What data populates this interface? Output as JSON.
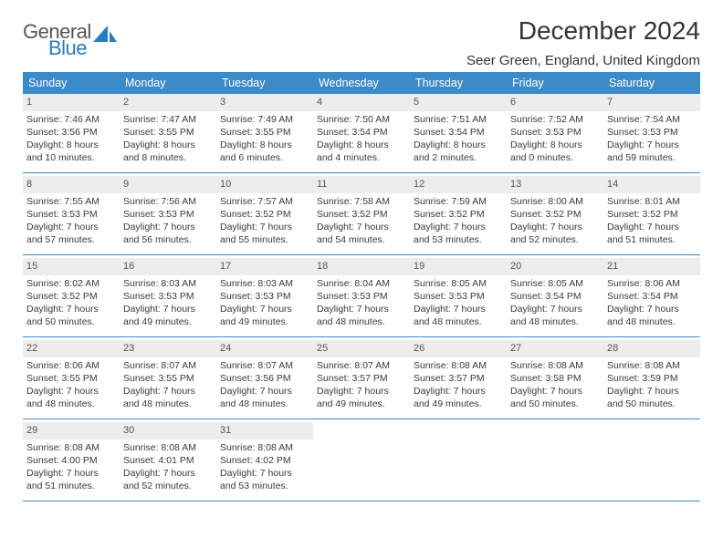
{
  "logo": {
    "general": "General",
    "blue": "Blue"
  },
  "title": "December 2024",
  "location": "Seer Green, England, United Kingdom",
  "colors": {
    "header_bg": "#3b8bc9",
    "header_text": "#ffffff",
    "row_border": "#3b8bc9",
    "daynum_bg": "#ededed",
    "text": "#3a3a3a"
  },
  "day_headers": [
    "Sunday",
    "Monday",
    "Tuesday",
    "Wednesday",
    "Thursday",
    "Friday",
    "Saturday"
  ],
  "weeks": [
    [
      {
        "n": "1",
        "sunrise": "7:46 AM",
        "sunset": "3:56 PM",
        "daylight": "8 hours and 10 minutes."
      },
      {
        "n": "2",
        "sunrise": "7:47 AM",
        "sunset": "3:55 PM",
        "daylight": "8 hours and 8 minutes."
      },
      {
        "n": "3",
        "sunrise": "7:49 AM",
        "sunset": "3:55 PM",
        "daylight": "8 hours and 6 minutes."
      },
      {
        "n": "4",
        "sunrise": "7:50 AM",
        "sunset": "3:54 PM",
        "daylight": "8 hours and 4 minutes."
      },
      {
        "n": "5",
        "sunrise": "7:51 AM",
        "sunset": "3:54 PM",
        "daylight": "8 hours and 2 minutes."
      },
      {
        "n": "6",
        "sunrise": "7:52 AM",
        "sunset": "3:53 PM",
        "daylight": "8 hours and 0 minutes."
      },
      {
        "n": "7",
        "sunrise": "7:54 AM",
        "sunset": "3:53 PM",
        "daylight": "7 hours and 59 minutes."
      }
    ],
    [
      {
        "n": "8",
        "sunrise": "7:55 AM",
        "sunset": "3:53 PM",
        "daylight": "7 hours and 57 minutes."
      },
      {
        "n": "9",
        "sunrise": "7:56 AM",
        "sunset": "3:53 PM",
        "daylight": "7 hours and 56 minutes."
      },
      {
        "n": "10",
        "sunrise": "7:57 AM",
        "sunset": "3:52 PM",
        "daylight": "7 hours and 55 minutes."
      },
      {
        "n": "11",
        "sunrise": "7:58 AM",
        "sunset": "3:52 PM",
        "daylight": "7 hours and 54 minutes."
      },
      {
        "n": "12",
        "sunrise": "7:59 AM",
        "sunset": "3:52 PM",
        "daylight": "7 hours and 53 minutes."
      },
      {
        "n": "13",
        "sunrise": "8:00 AM",
        "sunset": "3:52 PM",
        "daylight": "7 hours and 52 minutes."
      },
      {
        "n": "14",
        "sunrise": "8:01 AM",
        "sunset": "3:52 PM",
        "daylight": "7 hours and 51 minutes."
      }
    ],
    [
      {
        "n": "15",
        "sunrise": "8:02 AM",
        "sunset": "3:52 PM",
        "daylight": "7 hours and 50 minutes."
      },
      {
        "n": "16",
        "sunrise": "8:03 AM",
        "sunset": "3:53 PM",
        "daylight": "7 hours and 49 minutes."
      },
      {
        "n": "17",
        "sunrise": "8:03 AM",
        "sunset": "3:53 PM",
        "daylight": "7 hours and 49 minutes."
      },
      {
        "n": "18",
        "sunrise": "8:04 AM",
        "sunset": "3:53 PM",
        "daylight": "7 hours and 48 minutes."
      },
      {
        "n": "19",
        "sunrise": "8:05 AM",
        "sunset": "3:53 PM",
        "daylight": "7 hours and 48 minutes."
      },
      {
        "n": "20",
        "sunrise": "8:05 AM",
        "sunset": "3:54 PM",
        "daylight": "7 hours and 48 minutes."
      },
      {
        "n": "21",
        "sunrise": "8:06 AM",
        "sunset": "3:54 PM",
        "daylight": "7 hours and 48 minutes."
      }
    ],
    [
      {
        "n": "22",
        "sunrise": "8:06 AM",
        "sunset": "3:55 PM",
        "daylight": "7 hours and 48 minutes."
      },
      {
        "n": "23",
        "sunrise": "8:07 AM",
        "sunset": "3:55 PM",
        "daylight": "7 hours and 48 minutes."
      },
      {
        "n": "24",
        "sunrise": "8:07 AM",
        "sunset": "3:56 PM",
        "daylight": "7 hours and 48 minutes."
      },
      {
        "n": "25",
        "sunrise": "8:07 AM",
        "sunset": "3:57 PM",
        "daylight": "7 hours and 49 minutes."
      },
      {
        "n": "26",
        "sunrise": "8:08 AM",
        "sunset": "3:57 PM",
        "daylight": "7 hours and 49 minutes."
      },
      {
        "n": "27",
        "sunrise": "8:08 AM",
        "sunset": "3:58 PM",
        "daylight": "7 hours and 50 minutes."
      },
      {
        "n": "28",
        "sunrise": "8:08 AM",
        "sunset": "3:59 PM",
        "daylight": "7 hours and 50 minutes."
      }
    ],
    [
      {
        "n": "29",
        "sunrise": "8:08 AM",
        "sunset": "4:00 PM",
        "daylight": "7 hours and 51 minutes."
      },
      {
        "n": "30",
        "sunrise": "8:08 AM",
        "sunset": "4:01 PM",
        "daylight": "7 hours and 52 minutes."
      },
      {
        "n": "31",
        "sunrise": "8:08 AM",
        "sunset": "4:02 PM",
        "daylight": "7 hours and 53 minutes."
      },
      null,
      null,
      null,
      null
    ]
  ],
  "labels": {
    "sunrise": "Sunrise: ",
    "sunset": "Sunset: ",
    "daylight": "Daylight: "
  }
}
